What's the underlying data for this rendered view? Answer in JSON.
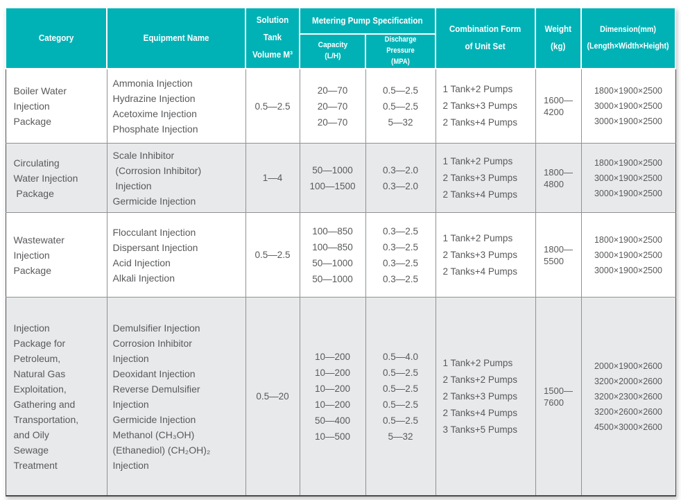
{
  "theme": {
    "header_bg": "#00b2b6",
    "row_alt_bg": "#e8e9ea",
    "text_color": "#58595b"
  },
  "table": {
    "header": {
      "category": "Category",
      "equipment_name": "Equipment Name",
      "solution_tank": "Solution Tank\nVolume M³",
      "metering_pump_spec": "Metering Pump Specification",
      "capacity": "Capacity\n(L/H)",
      "discharge_pressure": "Discharge Pressure\n(MPA)",
      "combination_form": "Combination Form\nof Unit Set",
      "weight": "Weight\n(kg)",
      "dimension": "Dimension(mm)\n(Length×Width×Height)"
    },
    "rows": [
      {
        "category": "Boiler Water\nInjection\nPackage",
        "equipment": "Ammonia Injection\nHydrazine Injection\nAcetoxime Injection\nPhosphate Injection",
        "tank_volume": "0.5—2.5",
        "capacity": "20—70\n20—70\n20—70",
        "discharge_pressure": "0.5—2.5\n0.5—2.5\n5—32",
        "combination": "1 Tank+2 Pumps\n2 Tanks+3 Pumps\n2 Tanks+4 Pumps",
        "weight": "1600—\n4200",
        "dimension": "1800×1900×2500\n3000×1900×2500\n3000×1900×2500"
      },
      {
        "category": "Circulating\nWater Injection\n Package",
        "equipment": "Scale Inhibitor\n (Corrosion Inhibitor)\n Injection\nGermicide Injection",
        "tank_volume": "1—4",
        "capacity": "50—1000\n100—1500",
        "discharge_pressure": "0.3—2.0\n0.3—2.0",
        "combination": "1 Tank+2 Pumps\n2 Tanks+3 Pumps\n2 Tanks+4 Pumps",
        "weight": "1800—\n4800",
        "dimension": "1800×1900×2500\n3000×1900×2500\n3000×1900×2500"
      },
      {
        "category": "Wastewater\nInjection\nPackage",
        "equipment": "Flocculant Injection\nDispersant Injection\nAcid Injection\nAlkali Injection",
        "tank_volume": "0.5—2.5",
        "capacity": "100—850\n100—850\n50—1000\n50—1000",
        "discharge_pressure": "0.3—2.5\n0.3—2.5\n0.3—2.5\n0.3—2.5",
        "combination": "1 Tank+2 Pumps\n2 Tanks+3 Pumps\n2 Tanks+4 Pumps",
        "weight": "1800—\n5500",
        "dimension": "1800×1900×2500\n3000×1900×2500\n3000×1900×2500"
      },
      {
        "category": "Injection\nPackage for\nPetroleum,\nNatural Gas\nExploitation,\nGathering and\nTransportation,\nand Oily\nSewage\nTreatment",
        "equipment": "Demulsifier Injection\nCorrosion Inhibitor\nInjection\nDeoxidant Injection\nReverse Demulsifier\nInjection\nGermicide Injection\nMethanol (CH₃OH)\n(Ethanediol) (CH₂OH)₂\nInjection",
        "tank_volume": "0.5—20",
        "capacity": "10—200\n10—200\n10—200\n10—200\n50—400\n10—500",
        "discharge_pressure": "0.5—4.0\n0.5—2.5\n0.5—2.5\n0.5—2.5\n0.5—2.5\n5—32",
        "combination": "1 Tank+2 Pumps\n2 Tanks+2 Pumps\n2 Tanks+3 Pumps\n2 Tanks+4 Pumps\n3 Tanks+5 Pumps",
        "weight": "1500—\n7600",
        "dimension": "2000×1900×2600\n3200×2000×2600\n3200×2300×2600\n3200×2600×2600\n4500×3000×2600"
      }
    ]
  }
}
